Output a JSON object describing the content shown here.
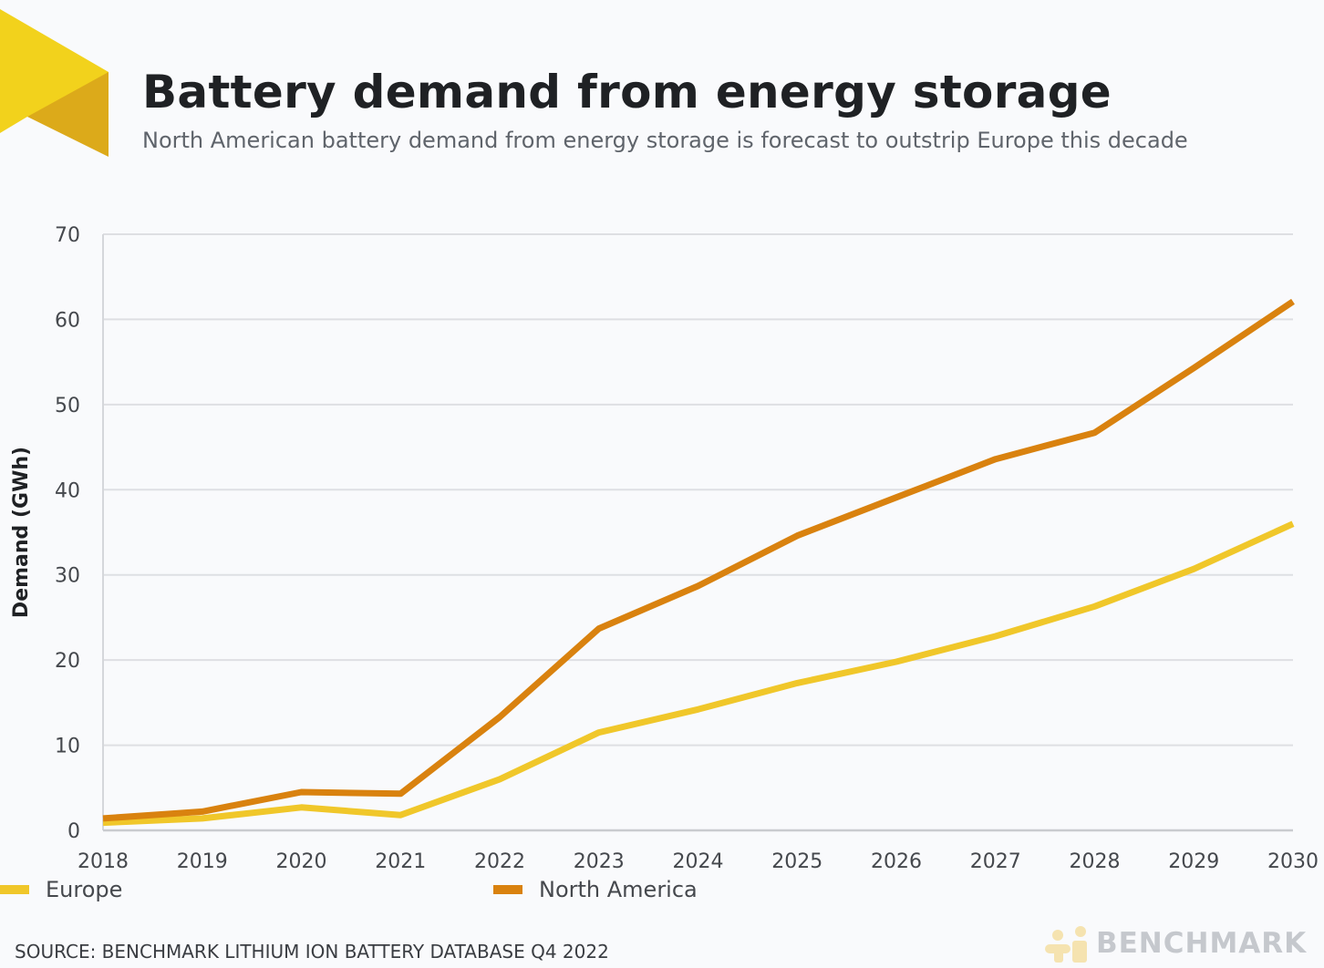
{
  "header": {
    "title": "Battery demand from energy storage",
    "subtitle": "North American battery demand from energy storage is forecast to outstrip Europe this decade"
  },
  "colors": {
    "europe": "#f0c72a",
    "north_america": "#d9820f",
    "logo_light": "#f2d21c",
    "logo_dark": "#dcaa1a",
    "grid": "#dedfe3"
  },
  "chart_data": {
    "type": "line",
    "title": "Battery demand from energy storage",
    "subtitle": "North American battery demand from energy storage is forecast to outstrip Europe this decade",
    "xlabel": "",
    "ylabel": "Demand (GWh)",
    "x": [
      "2018",
      "2019",
      "2020",
      "2021",
      "2022",
      "2023",
      "2024",
      "2025",
      "2026",
      "2027",
      "2028",
      "2029",
      "2030"
    ],
    "ylim": [
      0,
      70
    ],
    "yticks": [
      0,
      10,
      20,
      30,
      40,
      50,
      60,
      70
    ],
    "grid": true,
    "legend_position": "bottom",
    "series": [
      {
        "name": "Europe",
        "color": "#f0c72a",
        "values": [
          0.9,
          1.4,
          2.7,
          1.8,
          6.0,
          11.5,
          14.2,
          17.3,
          19.8,
          22.8,
          26.3,
          30.7,
          36.0
        ]
      },
      {
        "name": "North America",
        "color": "#d9820f",
        "values": [
          1.4,
          2.2,
          4.5,
          4.3,
          13.3,
          23.7,
          28.7,
          34.6,
          39.1,
          43.6,
          46.7,
          54.3,
          62.1
        ]
      }
    ]
  },
  "legend": {
    "items": [
      {
        "label": "Europe",
        "color": "#f0c72a"
      },
      {
        "label": "North America",
        "color": "#d9820f"
      }
    ]
  },
  "footer": {
    "source": "SOURCE: BENCHMARK LITHIUM ION BATTERY DATABASE Q4 2022",
    "brand": "BENCHMARK"
  }
}
